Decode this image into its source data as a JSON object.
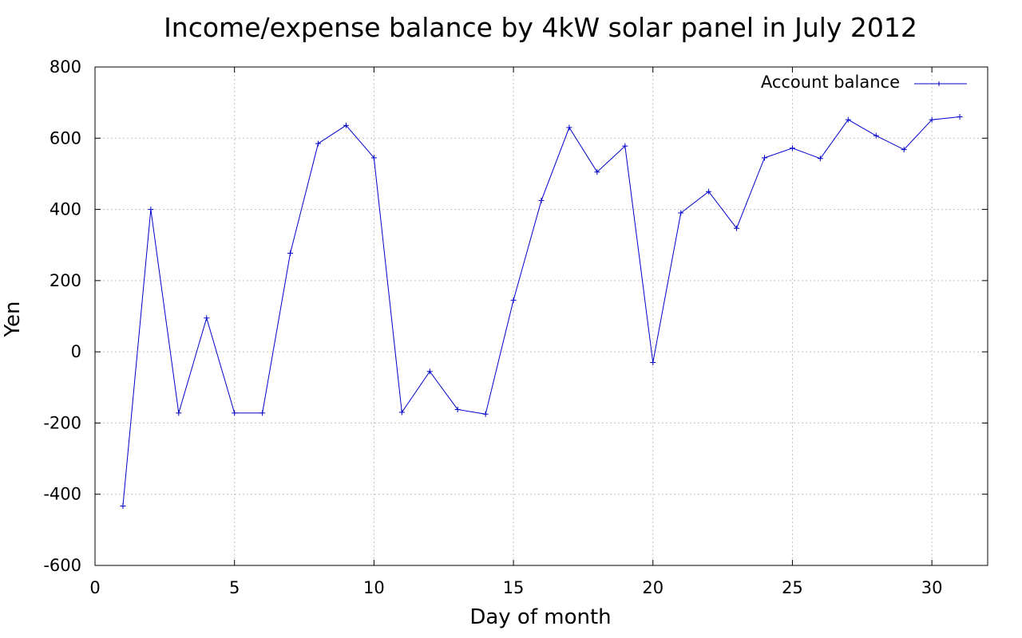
{
  "chart_data": {
    "type": "line",
    "title": "Income/expense balance by 4kW solar panel in July 2012",
    "xlabel": "Day of month",
    "ylabel": "Yen",
    "xlim": [
      0,
      32
    ],
    "ylim": [
      -600,
      800
    ],
    "xticks": [
      0,
      5,
      10,
      15,
      20,
      25,
      30
    ],
    "yticks": [
      -600,
      -400,
      -200,
      0,
      200,
      400,
      600,
      800
    ],
    "grid": true,
    "legend_position": "top-right",
    "series": [
      {
        "name": "Account balance",
        "color": "#0000cc",
        "marker": "plus",
        "x": [
          1,
          2,
          3,
          4,
          5,
          6,
          7,
          8,
          9,
          10,
          11,
          12,
          13,
          14,
          15,
          16,
          17,
          18,
          19,
          20,
          21,
          22,
          23,
          24,
          25,
          26,
          27,
          28,
          29,
          30,
          31
        ],
        "y": [
          -433,
          400,
          -172,
          95,
          -172,
          -172,
          277,
          585,
          636,
          545,
          -170,
          -55,
          -162,
          -175,
          145,
          425,
          630,
          505,
          578,
          -30,
          390,
          450,
          347,
          545,
          572,
          543,
          652,
          607,
          568,
          652,
          660
        ]
      }
    ]
  }
}
